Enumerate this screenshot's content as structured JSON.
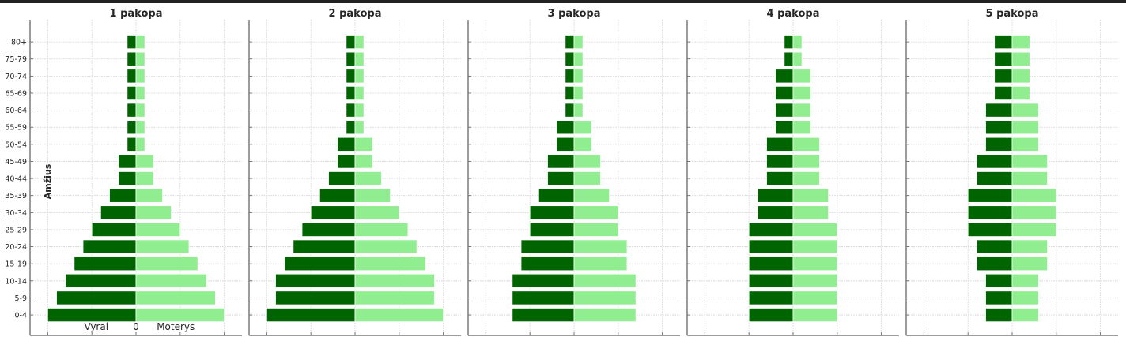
{
  "chart_data": {
    "type": "bar",
    "orientation": "horizontal-pyramid",
    "categories": [
      "0-4",
      "5-9",
      "10-14",
      "15-19",
      "20-24",
      "25-29",
      "30-34",
      "35-39",
      "40-44",
      "45-49",
      "50-54",
      "55-59",
      "60-64",
      "65-69",
      "70-74",
      "75-79",
      "80+"
    ],
    "ylabel": "Amžius",
    "side_labels": {
      "left": "Vyrai",
      "center": "0",
      "right": "Moterys"
    },
    "xlim": [
      -24,
      24
    ],
    "x_grid": [
      -20,
      -10,
      0,
      10,
      20
    ],
    "grid": true,
    "colors": {
      "male": "#006400",
      "female": "#90ee90"
    },
    "panels": [
      {
        "title": "1 pakopa",
        "male": [
          20,
          18,
          16,
          14,
          12,
          10,
          8,
          6,
          4,
          4,
          2,
          2,
          2,
          2,
          2,
          2,
          2
        ],
        "female": [
          20,
          18,
          16,
          14,
          12,
          10,
          8,
          6,
          4,
          4,
          2,
          2,
          2,
          2,
          2,
          2,
          2
        ]
      },
      {
        "title": "2 pakopa",
        "male": [
          20,
          18,
          18,
          16,
          14,
          12,
          10,
          8,
          6,
          4,
          4,
          2,
          2,
          2,
          2,
          2,
          2
        ],
        "female": [
          20,
          18,
          18,
          16,
          14,
          12,
          10,
          8,
          6,
          4,
          4,
          2,
          2,
          2,
          2,
          2,
          2
        ]
      },
      {
        "title": "3 pakopa",
        "male": [
          14,
          14,
          14,
          12,
          12,
          10,
          10,
          8,
          6,
          6,
          4,
          4,
          2,
          2,
          2,
          2,
          2
        ],
        "female": [
          14,
          14,
          14,
          12,
          12,
          10,
          10,
          8,
          6,
          6,
          4,
          4,
          2,
          2,
          2,
          2,
          2
        ]
      },
      {
        "title": "4 pakopa",
        "male": [
          10,
          10,
          10,
          10,
          10,
          10,
          8,
          8,
          6,
          6,
          6,
          4,
          4,
          4,
          4,
          2,
          2
        ],
        "female": [
          10,
          10,
          10,
          10,
          10,
          10,
          8,
          8,
          6,
          6,
          6,
          4,
          4,
          4,
          4,
          2,
          2
        ]
      },
      {
        "title": "5 pakopa",
        "male": [
          6,
          6,
          6,
          8,
          8,
          10,
          10,
          10,
          8,
          8,
          6,
          6,
          6,
          4,
          4,
          4,
          4
        ],
        "female": [
          6,
          6,
          6,
          8,
          8,
          10,
          10,
          10,
          8,
          8,
          6,
          6,
          6,
          4,
          4,
          4,
          4
        ]
      }
    ]
  }
}
